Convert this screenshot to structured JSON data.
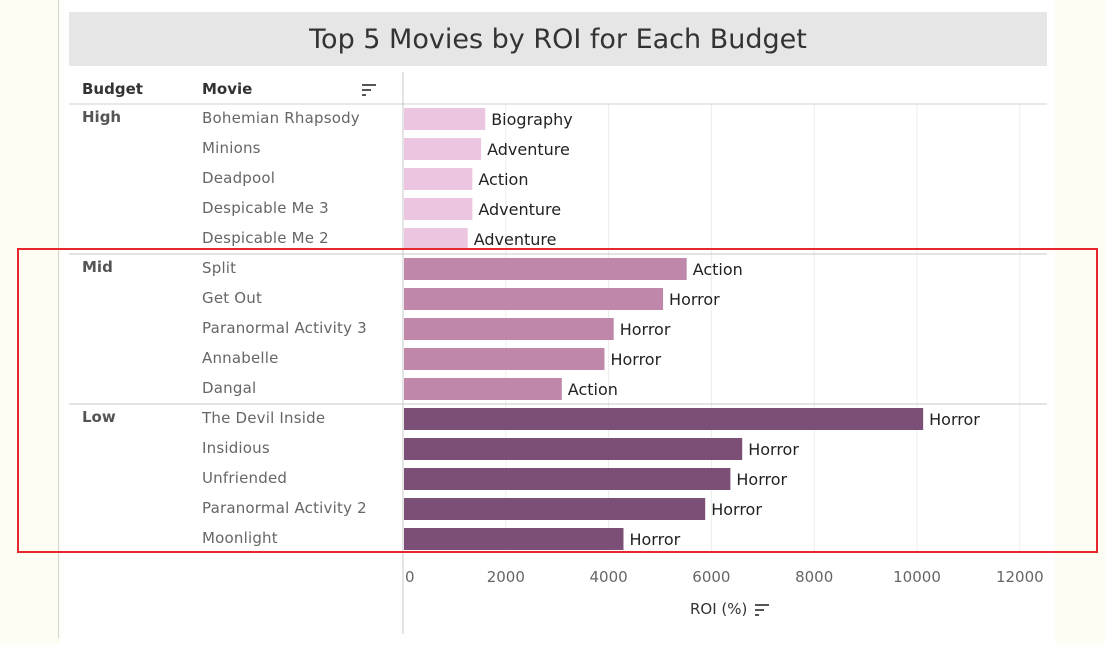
{
  "title": "Top 5 Movies by ROI for Each Budget",
  "headers": {
    "budget": "Budget",
    "movie": "Movie"
  },
  "colors": {
    "High": "#ecc6e1",
    "Mid": "#bf87aa",
    "Low": "#7c4f77",
    "highlight": "#e8262e"
  },
  "icons": [
    "sort-descending-icon"
  ],
  "chart_data": {
    "type": "bar",
    "orientation": "horizontal",
    "title": "Top 5 Movies by ROI for Each Budget",
    "xlabel": "ROI (%)",
    "xlim": [
      0,
      12500
    ],
    "xticks": [
      0,
      2000,
      4000,
      6000,
      8000,
      10000,
      12000
    ],
    "grid": true,
    "groups": [
      {
        "budget": "High",
        "rows": [
          {
            "movie": "Bohemian Rhapsody",
            "roi": 1580,
            "genre": "Biography"
          },
          {
            "movie": "Minions",
            "roi": 1500,
            "genre": "Adventure"
          },
          {
            "movie": "Deadpool",
            "roi": 1330,
            "genre": "Action"
          },
          {
            "movie": "Despicable Me 3",
            "roi": 1330,
            "genre": "Adventure"
          },
          {
            "movie": "Despicable Me 2",
            "roi": 1240,
            "genre": "Adventure"
          }
        ]
      },
      {
        "budget": "Mid",
        "rows": [
          {
            "movie": "Split",
            "roi": 5500,
            "genre": "Action"
          },
          {
            "movie": "Get Out",
            "roi": 5040,
            "genre": "Horror"
          },
          {
            "movie": "Paranormal Activity 3",
            "roi": 4080,
            "genre": "Horror"
          },
          {
            "movie": "Annabelle",
            "roi": 3900,
            "genre": "Horror"
          },
          {
            "movie": "Dangal",
            "roi": 3070,
            "genre": "Action"
          }
        ]
      },
      {
        "budget": "Low",
        "rows": [
          {
            "movie": "The Devil Inside",
            "roi": 10100,
            "genre": "Horror"
          },
          {
            "movie": "Insidious",
            "roi": 6580,
            "genre": "Horror"
          },
          {
            "movie": "Unfriended",
            "roi": 6350,
            "genre": "Horror"
          },
          {
            "movie": "Paranormal Activity 2",
            "roi": 5860,
            "genre": "Horror"
          },
          {
            "movie": "Moonlight",
            "roi": 4270,
            "genre": "Horror"
          }
        ]
      }
    ]
  }
}
